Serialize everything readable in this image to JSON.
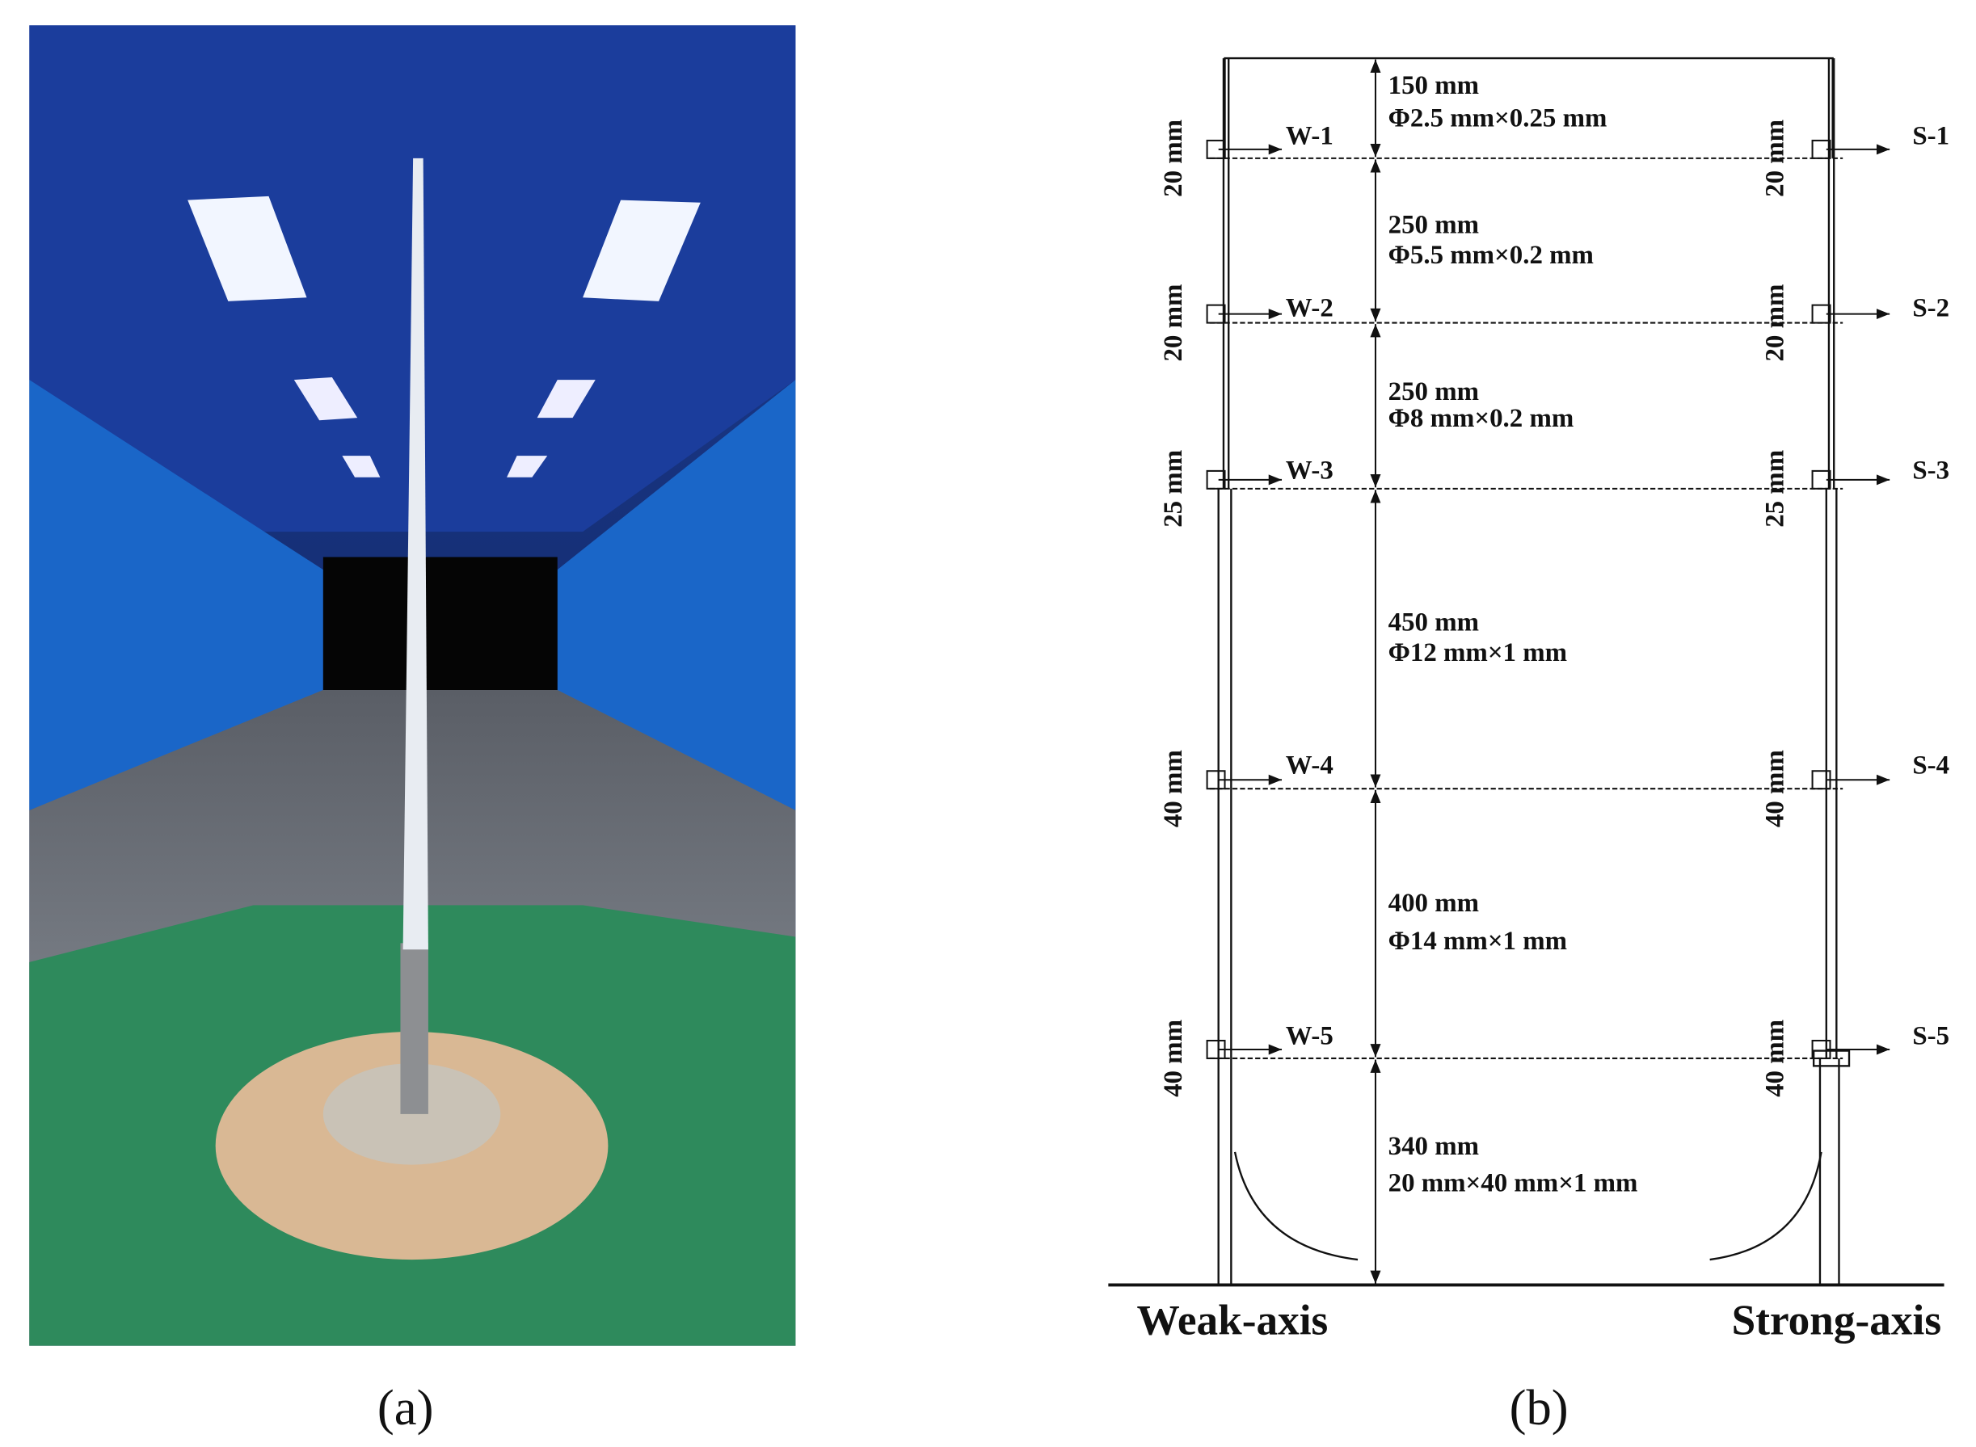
{
  "panels": [
    {
      "label": "(a)"
    },
    {
      "label": "(b)",
      "segments": [
        {
          "length": "150 mm",
          "section": "Φ2.5 mm×0.25 mm"
        },
        {
          "length": "250 mm",
          "section": "Φ5.5 mm×0.2 mm"
        },
        {
          "length": "250 mm",
          "section": "Φ8 mm×0.2 mm"
        },
        {
          "length": "450 mm",
          "section": "Φ12 mm×1 mm"
        },
        {
          "length": "400 mm",
          "section": "Φ14 mm×1 mm"
        },
        {
          "length": "340 mm",
          "section": "20 mm×40 mm×1 mm"
        }
      ],
      "weak_points": [
        {
          "name": "W-1",
          "spacing": "20 mm"
        },
        {
          "name": "W-2",
          "spacing": "20 mm"
        },
        {
          "name": "W-3",
          "spacing": "25 mm"
        },
        {
          "name": "W-4",
          "spacing": "40 mm"
        },
        {
          "name": "W-5",
          "spacing": "40 mm"
        }
      ],
      "strong_points": [
        {
          "name": "S-1",
          "spacing": "20 mm"
        },
        {
          "name": "S-2",
          "spacing": "20 mm"
        },
        {
          "name": "S-3",
          "spacing": "25 mm"
        },
        {
          "name": "S-4",
          "spacing": "40 mm"
        },
        {
          "name": "S-5",
          "spacing": "40 mm"
        }
      ],
      "axes": [
        "Weak-axis",
        "Strong-axis"
      ]
    }
  ]
}
